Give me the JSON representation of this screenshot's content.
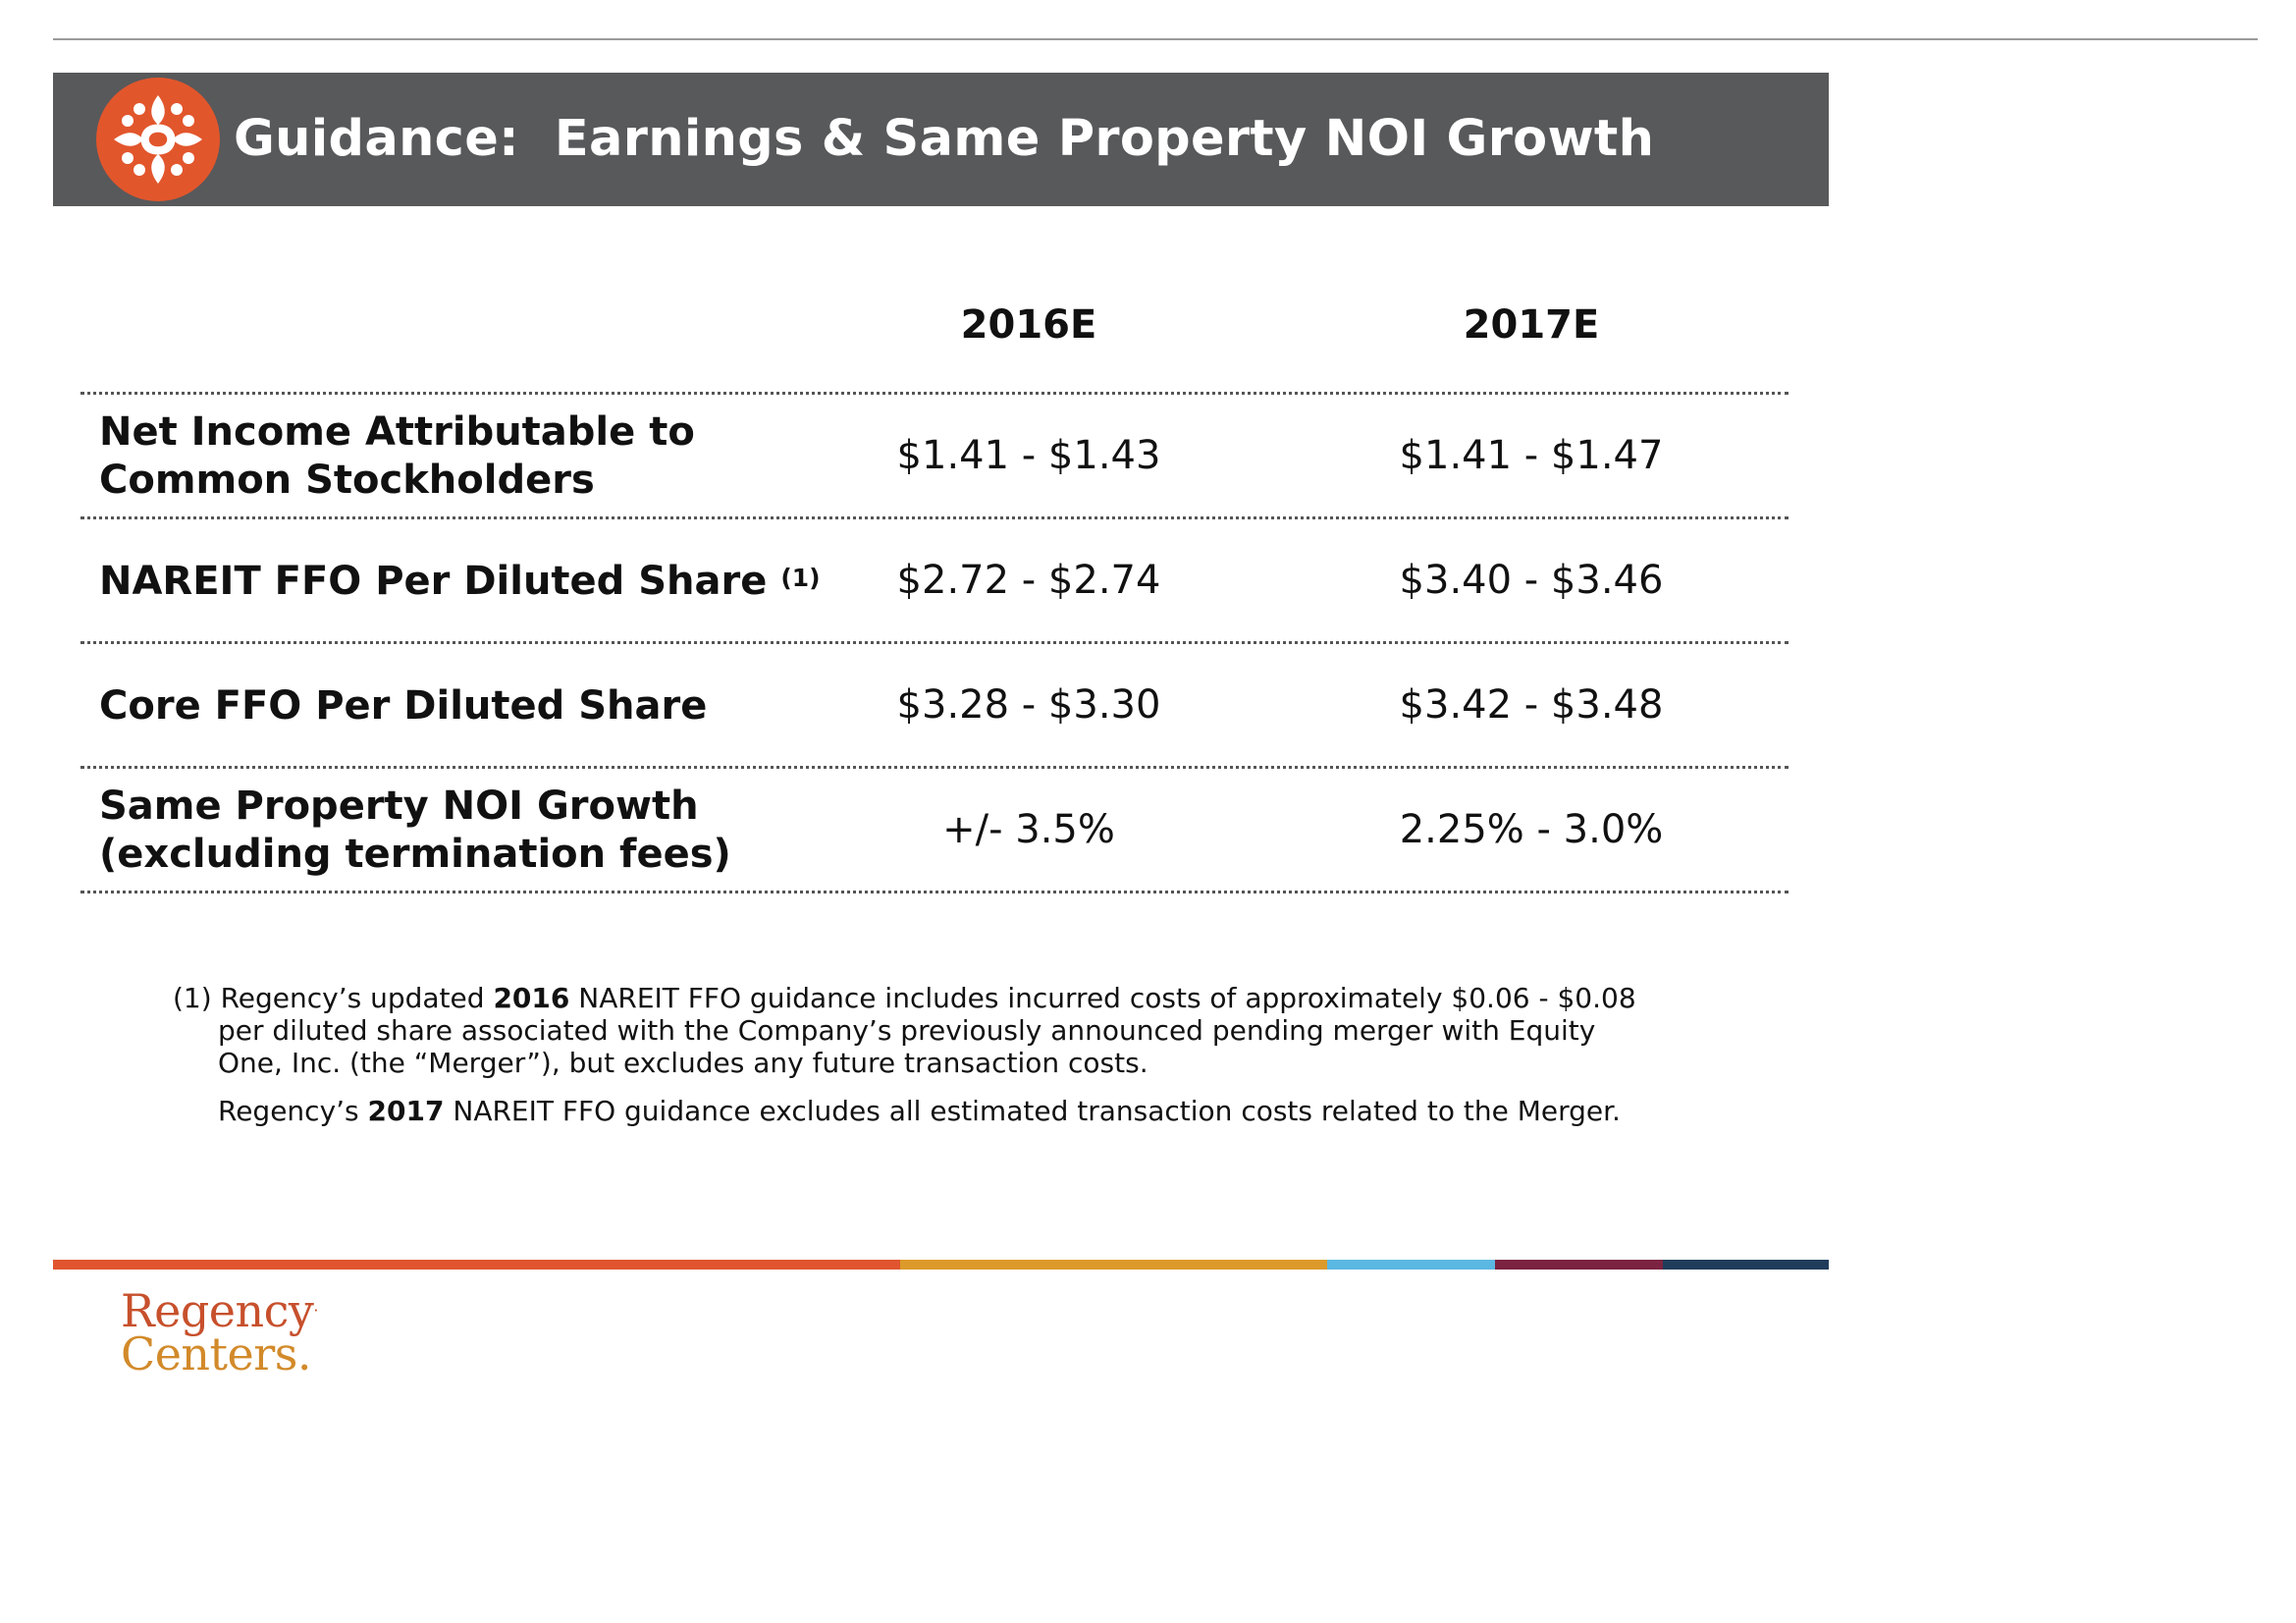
{
  "header": {
    "title": "Guidance:  Earnings & Same Property NOI Growth",
    "logo_icon": "regency-flower-icon",
    "bar_color": "#58595b",
    "logo_color": "#e2562c"
  },
  "table": {
    "columns": [
      "2016E",
      "2017E"
    ],
    "rows": [
      {
        "label_line1": "Net Income Attributable to",
        "label_line2": "Common Stockholders",
        "v2016": "$1.41 - $1.43",
        "v2017": "$1.41 - $1.47"
      },
      {
        "label": "NAREIT FFO Per Diluted Share",
        "footnote_ref": "(1)",
        "v2016": "$2.72 - $2.74",
        "v2017": "$3.40 - $3.46"
      },
      {
        "label": "Core FFO Per Diluted Share",
        "v2016": "$3.28 - $3.30",
        "v2017": "$3.42 - $3.48"
      },
      {
        "label_line1": "Same Property NOI Growth",
        "label_line2": "(excluding termination fees)",
        "v2016": "+/- 3.5%",
        "v2017": "2.25% - 3.0%"
      }
    ]
  },
  "footnote": {
    "marker": "(1)",
    "p1_pre": "Regency’s updated ",
    "p1_bold": "2016",
    "p1_post": " NAREIT FFO guidance includes incurred costs of approximately $0.06 - $0.08 per diluted share associated with the Company’s previously announced pending merger with Equity One, Inc. (the “Merger”), but excludes any future transaction costs.",
    "p2_pre": "Regency’s ",
    "p2_bold": "2017",
    "p2_post": " NAREIT FFO guidance excludes all estimated transaction costs related to the Merger."
  },
  "footer": {
    "brand_line1": "Regency",
    "brand_line2": "Centers.",
    "brand_mark": "·",
    "stripe_colors": [
      "#e0552f",
      "#dc9a2a",
      "#5bb8e2",
      "#7b2340",
      "#1f3d5b"
    ]
  }
}
